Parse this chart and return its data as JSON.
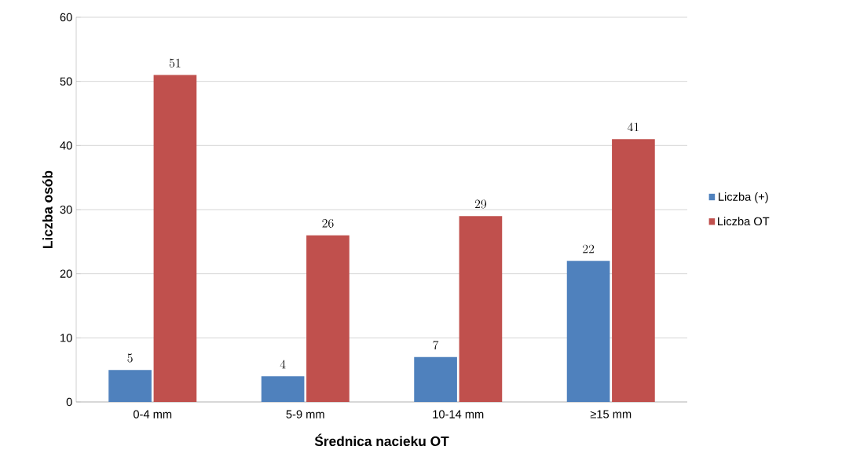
{
  "chart_data": {
    "type": "bar",
    "xlabel": "Średnica nacieku OT",
    "ylabel": "Liczba osób",
    "categories": [
      "0-4 mm",
      "5-9 mm",
      "10-14 mm",
      "≥15 mm"
    ],
    "series": [
      {
        "name": "Liczba (+)",
        "color": "#4f81bd",
        "values": [
          5,
          4,
          7,
          22
        ]
      },
      {
        "name": "Liczba OT",
        "color": "#c0504d",
        "values": [
          51,
          26,
          29,
          41
        ]
      }
    ],
    "ylim": [
      0,
      60
    ],
    "yticks": [
      0,
      10,
      20,
      30,
      40,
      50,
      60
    ],
    "grid": "y",
    "legend": "right",
    "data_labels": true
  }
}
